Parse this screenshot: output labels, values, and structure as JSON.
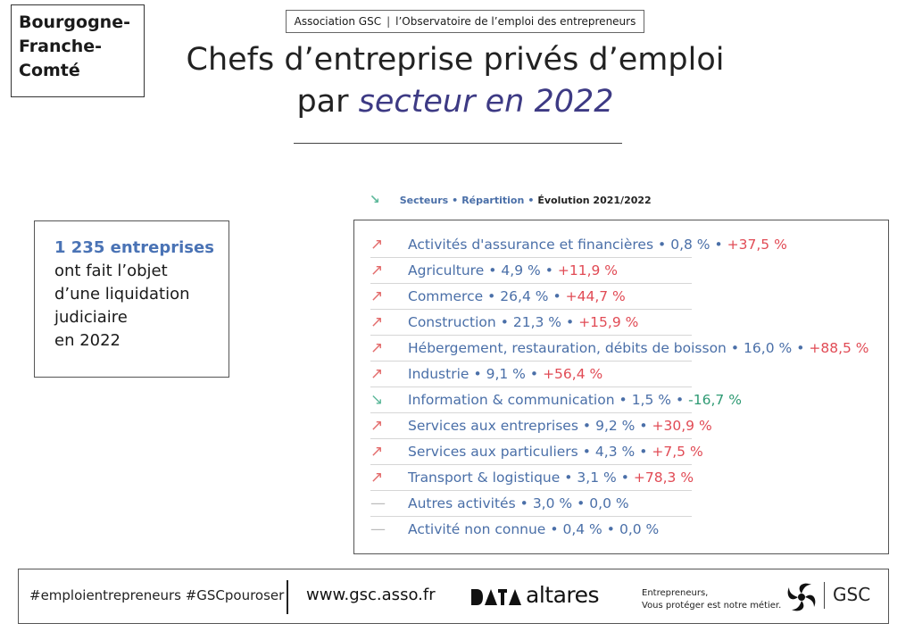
{
  "region": [
    "Bourgogne-",
    "Franche-",
    "Comté"
  ],
  "association": {
    "name": "Association GSC",
    "separator": "|",
    "subtitle": "l’Observatoire de l’emploi des entrepreneurs"
  },
  "title": {
    "line1": "Chefs d’entreprise privés d’emploi",
    "line2_prefix": "par",
    "line2_accent": "secteur en 2022"
  },
  "legend": {
    "arrow_icon": "↘",
    "sectors": "Secteurs",
    "dot": "•",
    "repartition": "Répartition",
    "evolution": "Évolution 2021/2022"
  },
  "liquidation": {
    "highlight": "1 235 entreprises",
    "lines": [
      "ont fait l’objet",
      "d’une liquidation",
      "judiciaire",
      "en 2022"
    ]
  },
  "sectors": [
    {
      "name": "Activités d'assurance et financières",
      "share": "0,8 %",
      "evolution": "+37,5 %",
      "trend": "up"
    },
    {
      "name": "Agriculture",
      "share": "4,9 %",
      "evolution": "+11,9 %",
      "trend": "up"
    },
    {
      "name": "Commerce",
      "share": "26,4 %",
      "evolution": "+44,7 %",
      "trend": "up"
    },
    {
      "name": "Construction",
      "share": "21,3 %",
      "evolution": "+15,9 %",
      "trend": "up"
    },
    {
      "name": "Hébergement, restauration, débits de boisson",
      "share": "16,0 %",
      "evolution": "+88,5 %",
      "trend": "up"
    },
    {
      "name": "Industrie",
      "share": "9,1 %",
      "evolution": "+56,4 %",
      "trend": "up"
    },
    {
      "name": "Information & communication",
      "share": "1,5 %",
      "evolution": "-16,7 %",
      "trend": "down"
    },
    {
      "name": "Services aux entreprises",
      "share": "9,2 %",
      "evolution": "+30,9 %",
      "trend": "up"
    },
    {
      "name": "Services aux particuliers",
      "share": "4,3 %",
      "evolution": "+7,5 %",
      "trend": "up"
    },
    {
      "name": "Transport & logistique",
      "share": "3,1 %",
      "evolution": "+78,3 %",
      "trend": "up"
    },
    {
      "name": "Autres activités",
      "share": "3,0 %",
      "evolution": "0,0 %",
      "trend": "flat"
    },
    {
      "name": "Activité non connue",
      "share": "0,4 %",
      "evolution": "0,0 %",
      "trend": "flat"
    }
  ],
  "footer": {
    "hashtags": "#emploientrepreneurs #GSCpouroser",
    "website": "www.gsc.asso.fr",
    "altares": "altares",
    "tagline": [
      "Entrepreneurs,",
      "Vous protéger est notre métier."
    ],
    "gsc": "GSC"
  },
  "colors": {
    "accent": "#3d3a84",
    "blue": "#4a6fa8",
    "up": "#e14b55",
    "down": "#2e9a73"
  }
}
